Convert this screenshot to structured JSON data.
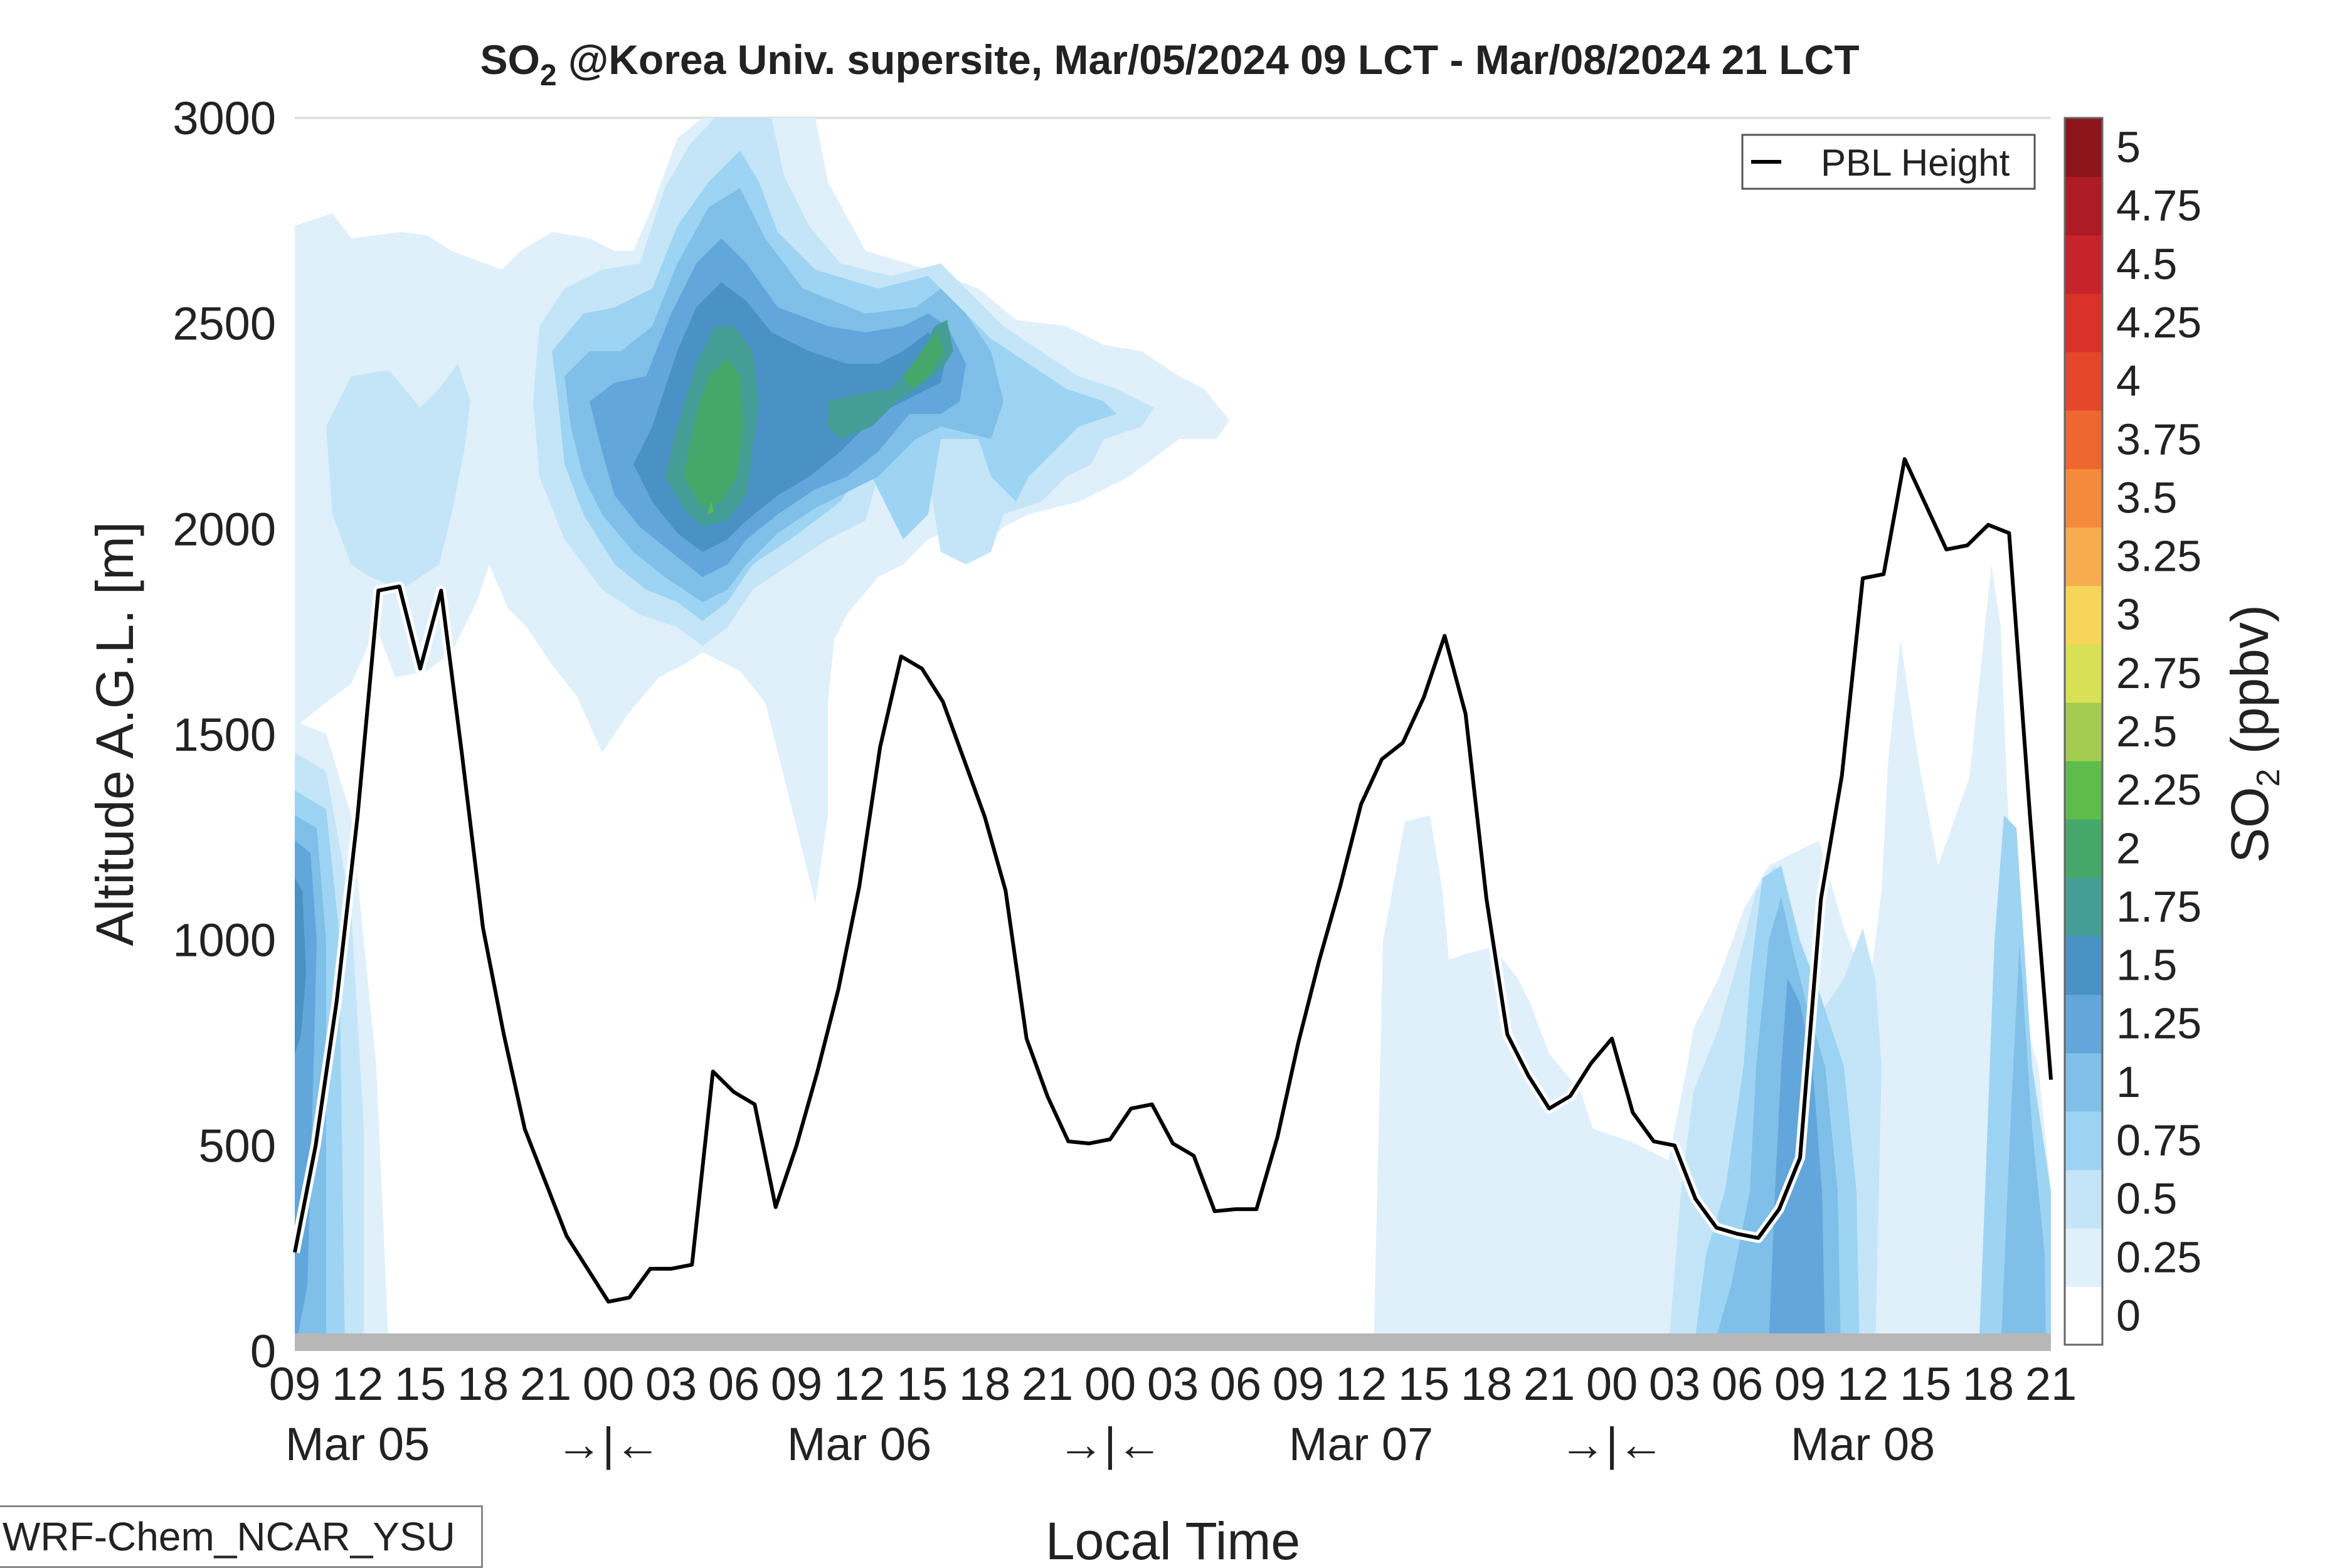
{
  "chart_data": {
    "type": "heatmap",
    "title_main": "SO",
    "title_sub": "2",
    "title_rest": " @Korea Univ. supersite, Mar/05/2024 09 LCT - Mar/08/2024 21 LCT",
    "ylabel": "Altitude A.G.L. [m]",
    "xlabel": "Local Time",
    "ylim": [
      0,
      3000
    ],
    "xlim_hours": [
      0,
      84
    ],
    "y_ticks": [
      "0",
      "500",
      "1000",
      "1500",
      "2000",
      "2500",
      "3000"
    ],
    "x_tick_labels": [
      "09",
      "12",
      "15",
      "18",
      "21",
      "00",
      "03",
      "06",
      "09",
      "12",
      "15",
      "18",
      "21",
      "00",
      "03",
      "06",
      "09",
      "12",
      "15",
      "18",
      "21",
      "00",
      "03",
      "06",
      "09",
      "12",
      "15",
      "18",
      "21"
    ],
    "day_labels": [
      {
        "text": "Mar 05",
        "hour": 3
      },
      {
        "text": "→|←",
        "hour": 15
      },
      {
        "text": "Mar 06",
        "hour": 27
      },
      {
        "text": "→|←",
        "hour": 39
      },
      {
        "text": "Mar 07",
        "hour": 51
      },
      {
        "text": "→|←",
        "hour": 63
      },
      {
        "text": "Mar 08",
        "hour": 75
      }
    ],
    "colorbar": {
      "label_main": "SO",
      "label_sub": "2",
      "label_rest": " (ppbv)",
      "levels": [
        "0",
        "0.25",
        "0.5",
        "0.75",
        "1",
        "1.25",
        "1.5",
        "1.75",
        "2",
        "2.25",
        "2.5",
        "2.75",
        "3",
        "3.25",
        "3.5",
        "3.75",
        "4",
        "4.25",
        "4.5",
        "4.75",
        "5"
      ],
      "colors": [
        "#ffffff",
        "#dff0fb",
        "#c4e5f8",
        "#9dd4f3",
        "#7fbfe8",
        "#62a6db",
        "#4a91c6",
        "#459e96",
        "#45a86a",
        "#5ebc4c",
        "#a4cc50",
        "#d8e055",
        "#f7d45a",
        "#f7ac4e",
        "#f58a3c",
        "#ee6630",
        "#e5472c",
        "#da3129",
        "#c8222b",
        "#ad1b24",
        "#8d1419"
      ]
    },
    "legend": {
      "label": "PBL Height",
      "position": "top-right"
    },
    "pbl_series": {
      "name": "PBL Height",
      "hours": [
        0,
        1,
        2,
        3,
        4,
        5,
        6,
        7,
        8,
        9,
        10,
        11,
        12,
        13,
        14,
        15,
        16,
        17,
        18,
        19,
        20,
        21,
        22,
        23,
        24,
        25,
        26,
        27,
        28,
        29,
        30,
        31,
        32,
        33,
        34,
        35,
        36,
        37,
        38,
        39,
        40,
        41,
        42,
        43,
        44,
        45,
        46,
        47,
        48,
        49,
        50,
        51,
        52,
        53,
        54,
        55,
        56,
        57,
        58,
        59,
        60,
        61,
        62,
        63,
        64,
        65,
        66,
        67,
        68,
        69,
        70,
        71,
        72,
        73,
        74,
        75,
        76,
        77,
        78,
        79,
        80,
        81,
        82,
        83,
        84
      ],
      "values": [
        240,
        500,
        850,
        1300,
        1850,
        1860,
        1660,
        1850,
        1450,
        1030,
        770,
        540,
        410,
        280,
        200,
        120,
        130,
        200,
        200,
        210,
        680,
        630,
        600,
        350,
        500,
        680,
        880,
        1130,
        1470,
        1690,
        1660,
        1580,
        1440,
        1300,
        1120,
        760,
        620,
        510,
        505,
        515,
        590,
        600,
        505,
        475,
        340,
        345,
        345,
        520,
        750,
        950,
        1130,
        1330,
        1440,
        1480,
        1590,
        1740,
        1550,
        1100,
        770,
        670,
        590,
        620,
        700,
        760,
        580,
        510,
        500,
        370,
        300,
        285,
        275,
        345,
        470,
        1100,
        1400,
        1880,
        1890,
        2170,
        2060,
        1950,
        1960,
        2010,
        1990,
        1300,
        660
      ]
    },
    "so2_field_note": "",
    "model_label": "WRF-Chem_NCAR_YSU"
  }
}
